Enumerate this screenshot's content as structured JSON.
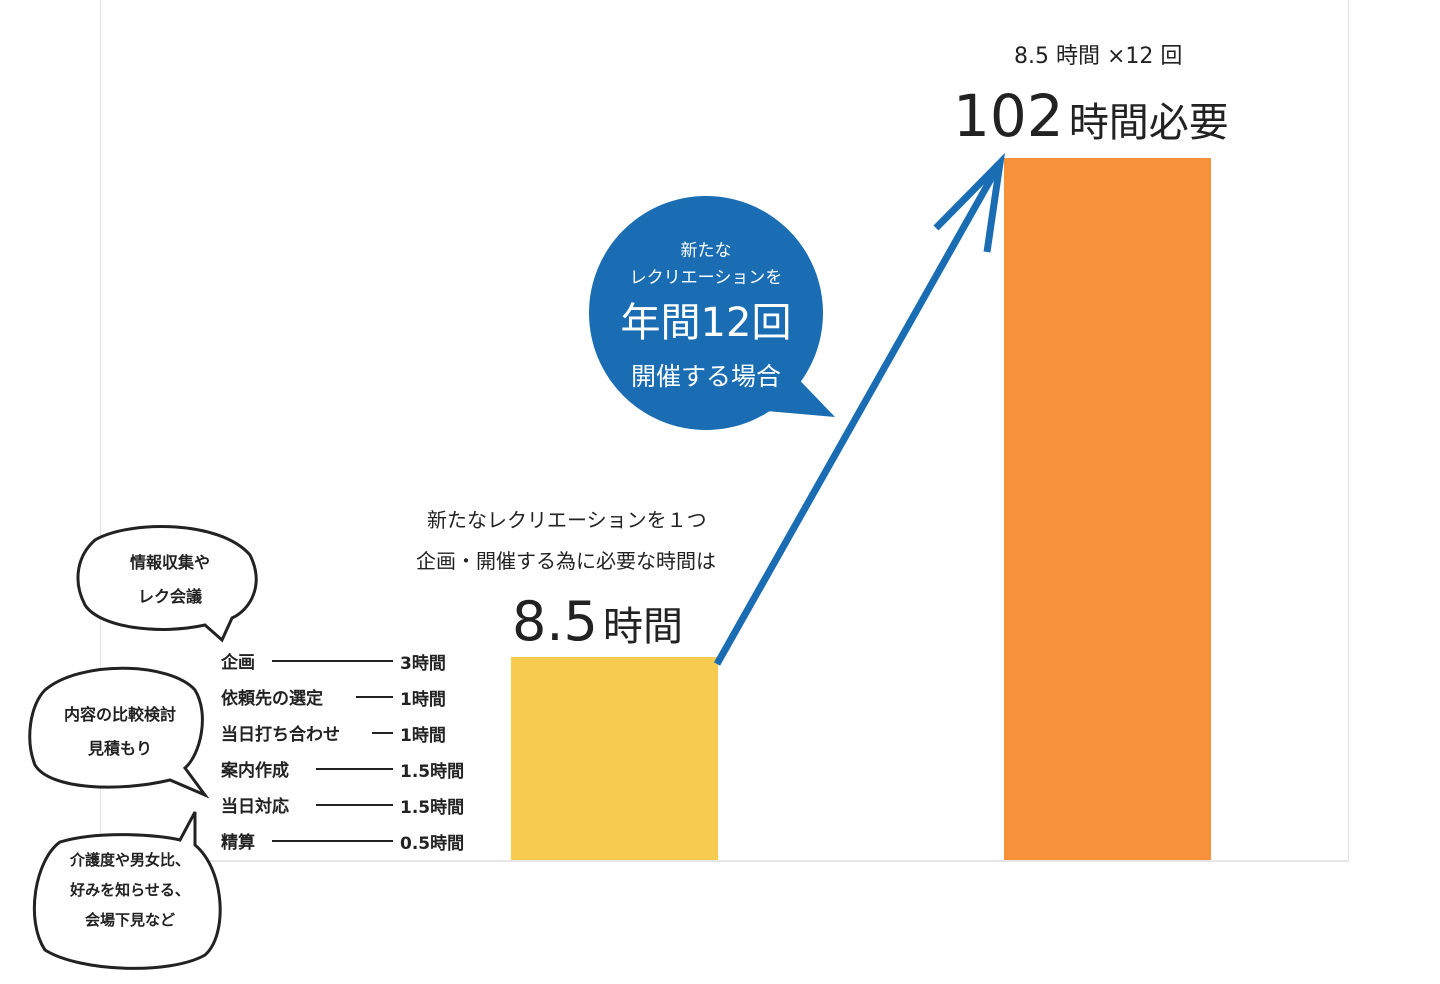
{
  "chart_data": {
    "type": "bar",
    "categories": [
      "新たなレクリエーションを1つ企画・開催",
      "年間12回開催"
    ],
    "values": [
      8.5,
      102
    ],
    "unit": "時間",
    "colors": [
      "#f6cb4f",
      "#f7923a"
    ],
    "labels": {
      "bar1_caption_line1": "新たなレクリエーションを１つ",
      "bar1_caption_line2": "企画・開催する為に必要な時間は",
      "bar1_value_num": "8.5",
      "bar1_value_unit": "時間",
      "bar2_formula": "8.5 時間 ×12 回",
      "bar2_value_num": "102",
      "bar2_value_unit": "時間必要"
    },
    "callout": {
      "line1": "新たな",
      "line2": "レクリエーションを",
      "line3": "年間12回",
      "line4": "開催する場合",
      "color": "#1a6db3"
    },
    "breakdown": [
      {
        "task": "企画",
        "hours": "3時間"
      },
      {
        "task": "依頼先の選定",
        "hours": "1時間"
      },
      {
        "task": "当日打ち合わせ",
        "hours": "1時間"
      },
      {
        "task": "案内作成",
        "hours": "1.5時間"
      },
      {
        "task": "当日対応",
        "hours": "1.5時間"
      },
      {
        "task": "精算",
        "hours": "0.5時間"
      }
    ],
    "notes": [
      {
        "line1": "情報収集や",
        "line2": "レク会議"
      },
      {
        "line1": "内容の比較検討",
        "line2": "見積もり"
      },
      {
        "line1": "介護度や男女比、",
        "line2": "好みを知らせる、",
        "line3": "会場下見など"
      }
    ]
  }
}
